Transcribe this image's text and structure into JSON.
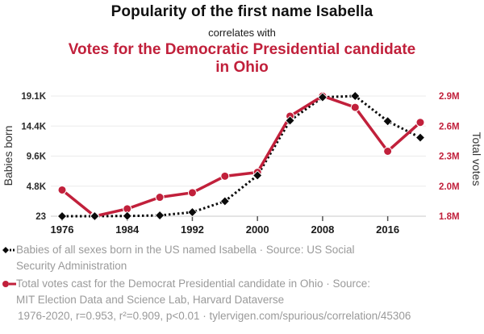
{
  "colors": {
    "accent_red": "#c1203b",
    "series_black": "#0a0a0a",
    "grid": "#ebebeb",
    "axis_line": "#c9c9c9",
    "tick_stub": "#555555",
    "muted_text": "#9a9a9a"
  },
  "header": {
    "title": "Popularity of the first name Isabella",
    "subtitle": "correlates with",
    "title2": "Votes for the Democratic Presidential candidate in Ohio"
  },
  "chart_data": {
    "type": "line",
    "x": [
      1976,
      1980,
      1984,
      1988,
      1992,
      1996,
      2000,
      2004,
      2008,
      2012,
      2016,
      2020
    ],
    "x_tick_labels": [
      "1976",
      "1984",
      "1992",
      "2000",
      "2008",
      "2016"
    ],
    "grid": "horizontal-only",
    "legend_position": "bottom",
    "series": [
      {
        "name": "Babies of all sexes born in the US named Isabella",
        "axis": "left",
        "style": "dashed",
        "marker": "diamond",
        "color": "#0a0a0a",
        "values": [
          23,
          30,
          60,
          150,
          660,
          2400,
          6500,
          15200,
          18900,
          19100,
          15100,
          12500
        ]
      },
      {
        "name": "Total votes cast for the Democrat Presidential candidate in Ohio",
        "axis": "right",
        "style": "solid",
        "marker": "circle",
        "color": "#c1203b",
        "values": [
          2011621,
          1752414,
          1825440,
          1939629,
          1984942,
          2148222,
          2186190,
          2741167,
          2940044,
          2827709,
          2394164,
          2679165
        ]
      }
    ],
    "left_axis": {
      "label": "Babies born",
      "min": 23,
      "max": 19100,
      "tick_labels": [
        "23",
        "4.8K",
        "9.6K",
        "14.4K",
        "19.1K"
      ]
    },
    "right_axis": {
      "label": "Total votes",
      "min": 1752414,
      "max": 2940044,
      "tick_labels": [
        "1.8M",
        "2.0M",
        "2.3M",
        "2.6M",
        "2.9M"
      ]
    }
  },
  "legend": [
    {
      "marker": "diamond",
      "color": "#0a0a0a",
      "line1": "Babies of all sexes born in the US named Isabella · Source: US Social",
      "line2": "Security Administration"
    },
    {
      "marker": "circle",
      "color": "#c1203b",
      "line1": "Total votes cast for the Democrat Presidential candidate in Ohio · Source:",
      "line2": "MIT Election Data and Science Lab, Harvard Dataverse"
    }
  ],
  "footer": {
    "stats": "1976-2020, r=0.953, r²=0.909, p<0.01 · tylervigen.com/spurious/correlation/45306"
  }
}
